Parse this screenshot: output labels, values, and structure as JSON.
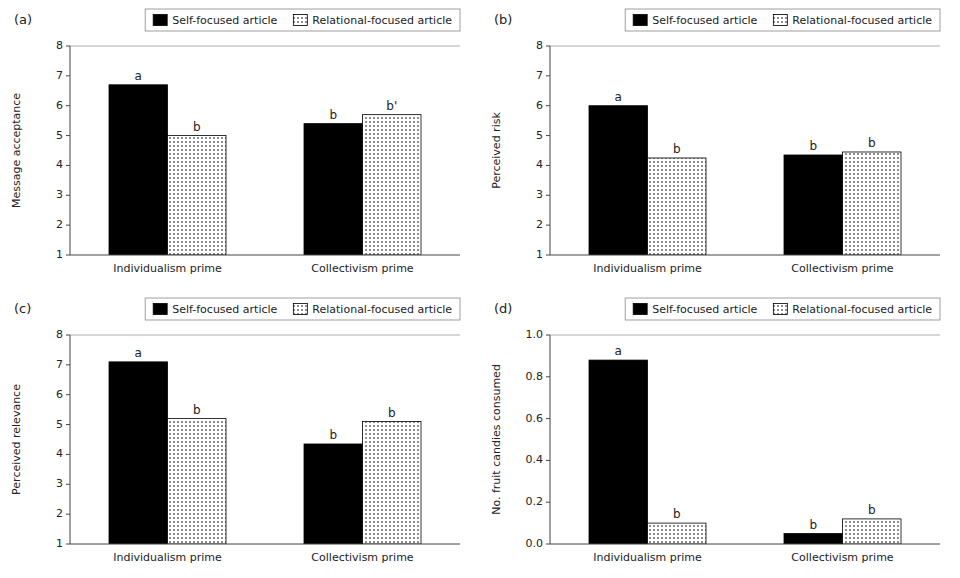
{
  "chart_data": [
    {
      "type": "bar",
      "title": "(a)",
      "y_label": "Message acceptance",
      "categories": [
        "Individualism prime",
        "Collectivism prime"
      ],
      "series": [
        {
          "name": "Self-focused article",
          "color": "#000000",
          "values": [
            6.7,
            5.4
          ],
          "annotations": [
            "a",
            "b"
          ]
        },
        {
          "name": "Relational-focused article",
          "color": "#ffffff",
          "values": [
            5.0,
            5.7
          ],
          "annotations": [
            "b",
            "b'"
          ]
        }
      ],
      "ylim": [
        1,
        8
      ],
      "yticks": [
        1,
        2,
        3,
        4,
        5,
        6,
        7,
        8
      ],
      "legend": "upper right"
    },
    {
      "type": "bar",
      "title": "(b)",
      "y_label": "Perceived risk",
      "categories": [
        "Individualism prime",
        "Collectivism prime"
      ],
      "series": [
        {
          "name": "Self-focused article",
          "color": "#000000",
          "values": [
            6.0,
            4.35
          ],
          "annotations": [
            "a",
            "b"
          ]
        },
        {
          "name": "Relational-focused article",
          "color": "#ffffff",
          "values": [
            4.25,
            4.45
          ],
          "annotations": [
            "b",
            "b"
          ]
        }
      ],
      "ylim": [
        1,
        8
      ],
      "yticks": [
        1,
        2,
        3,
        4,
        5,
        6,
        7,
        8
      ],
      "legend": "upper right"
    },
    {
      "type": "bar",
      "title": "(c)",
      "y_label": "Perceived relevance",
      "categories": [
        "Individualism prime",
        "Collectivism prime"
      ],
      "series": [
        {
          "name": "Self-focused article",
          "color": "#000000",
          "values": [
            7.1,
            4.35
          ],
          "annotations": [
            "a",
            "b"
          ]
        },
        {
          "name": "Relational-focused article",
          "color": "#ffffff",
          "values": [
            5.2,
            5.1
          ],
          "annotations": [
            "b",
            "b"
          ]
        }
      ],
      "ylim": [
        1,
        8
      ],
      "yticks": [
        1,
        2,
        3,
        4,
        5,
        6,
        7,
        8
      ],
      "legend": "upper right"
    },
    {
      "type": "bar",
      "title": "(d)",
      "y_label": "No. fruit candies consumed",
      "categories": [
        "Individualism prime",
        "Collectivism prime"
      ],
      "series": [
        {
          "name": "Self-focused article",
          "color": "#000000",
          "values": [
            0.88,
            0.05
          ],
          "annotations": [
            "a",
            "b"
          ]
        },
        {
          "name": "Relational-focused article",
          "color": "#ffffff",
          "values": [
            0.1,
            0.12
          ],
          "annotations": [
            "b",
            "b"
          ]
        }
      ],
      "ylim": [
        0,
        1
      ],
      "yticks": [
        {
          "value": 0,
          "label": "0.0"
        },
        0.2,
        0.4,
        0.6,
        0.8,
        {
          "value": 1.0,
          "label": "1.0"
        }
      ],
      "legend": "upper right"
    }
  ]
}
